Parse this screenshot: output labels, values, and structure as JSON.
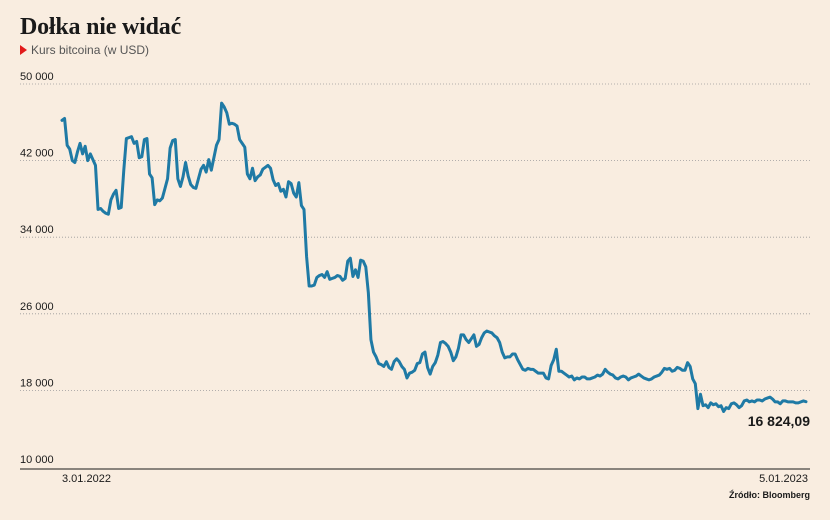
{
  "title": "Dołka nie widać",
  "subtitle": "Kurs bitcoina (w USD)",
  "source": "Źródło: Bloomberg",
  "accent_color": "#1f7aa5",
  "marker_color": "#e21b1b",
  "chart_data": {
    "type": "line",
    "title": "Dołka nie widać",
    "subtitle": "Kurs bitcoina (w USD)",
    "xlabel": "",
    "ylabel": "",
    "x_tick_labels": [
      "3.01.2022",
      "5.01.2023"
    ],
    "ylim": [
      10000,
      50000
    ],
    "y_ticks": [
      10000,
      18000,
      26000,
      34000,
      42000,
      50000
    ],
    "y_tick_labels": [
      "10 000",
      "18 000",
      "26 000",
      "34 000",
      "42 000",
      "50 000"
    ],
    "grid": "horizontal dotted",
    "last_value_label": "16 824,09",
    "series": [
      {
        "values": [
          46200,
          46400,
          43600,
          43200,
          42000,
          41800,
          42900,
          43800,
          42700,
          43500,
          42000,
          42700,
          42100,
          41500,
          36900,
          37000,
          36700,
          36500,
          36400,
          37900,
          38500,
          38900,
          37000,
          37100,
          41000,
          44300,
          44400,
          44500,
          43800,
          44000,
          42300,
          42400,
          44200,
          44300,
          40600,
          40200,
          37400,
          37900,
          37800,
          38100,
          39100,
          40100,
          43300,
          44100,
          44200,
          40100,
          39300,
          40300,
          41800,
          40400,
          39500,
          39200,
          39100,
          40100,
          41100,
          41500,
          40800,
          42100,
          41000,
          42300,
          43600,
          44200,
          48000,
          47600,
          47000,
          45800,
          45900,
          45800,
          45600,
          44200,
          43800,
          43400,
          40600,
          40100,
          41200,
          39900,
          40300,
          40500,
          41100,
          41300,
          41500,
          41200,
          40000,
          39400,
          39600,
          38800,
          39000,
          38200,
          39800,
          39600,
          38600,
          38200,
          39700,
          37300,
          36900,
          32000,
          28900,
          28900,
          29000,
          29800,
          30000,
          30100,
          29800,
          30400,
          29600,
          29700,
          29800,
          30000,
          29900,
          29500,
          29700,
          31500,
          31800,
          29900,
          30600,
          29800,
          31600,
          31500,
          30900,
          28200,
          23300,
          22000,
          21500,
          20800,
          20700,
          20500,
          21000,
          20400,
          20200,
          21000,
          21300,
          21000,
          20500,
          20200,
          19300,
          19800,
          19900,
          20100,
          20800,
          20900,
          21800,
          22000,
          20400,
          19700,
          20500,
          20900,
          21700,
          23000,
          23100,
          22900,
          22600,
          22000,
          21100,
          21500,
          22400,
          23800,
          23800,
          23300,
          23000,
          23400,
          23800,
          22600,
          22800,
          23500,
          24000,
          24200,
          24100,
          24000,
          23700,
          23500,
          23000,
          22000,
          21400,
          21500,
          21500,
          21800,
          21800,
          21200,
          20700,
          20200,
          20100,
          20300,
          20200,
          20200,
          20000,
          19800,
          19800,
          19800,
          19300,
          19200,
          20600,
          21200,
          22300,
          20000,
          20000,
          19800,
          19600,
          19400,
          19500,
          19100,
          19300,
          19200,
          19400,
          19400,
          19200,
          19200,
          19300,
          19400,
          19600,
          19500,
          19700,
          20200,
          19900,
          19700,
          19600,
          19300,
          19200,
          19400,
          19500,
          19400,
          19100,
          19300,
          19400,
          19500,
          19700,
          19500,
          19300,
          19200,
          19100,
          19200,
          19400,
          19500,
          19600,
          19900,
          20300,
          20200,
          20300,
          20000,
          20100,
          20400,
          20300,
          20100,
          20100,
          20900,
          20500,
          19200,
          18700,
          16100,
          17600,
          16400,
          16500,
          16200,
          16700,
          16500,
          16600,
          16300,
          16400,
          15800,
          16200,
          16100,
          16600,
          16700,
          16500,
          16200,
          16400,
          16900,
          17000,
          16800,
          16900,
          16800,
          17000,
          17000,
          16900,
          17100,
          17200,
          17300,
          17100,
          16800,
          16800,
          16600,
          16900,
          16900,
          16800,
          16800,
          16800,
          16700,
          16700,
          16800,
          16900,
          16824.09
        ]
      }
    ]
  }
}
